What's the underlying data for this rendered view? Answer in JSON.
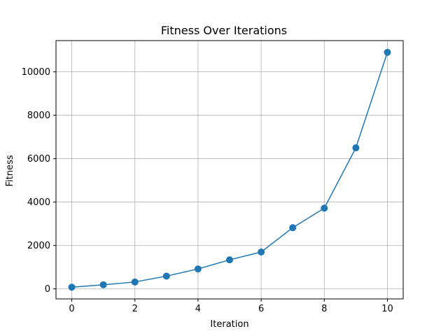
{
  "chart_data": {
    "type": "line",
    "title": "Fitness Over Iterations",
    "xlabel": "Iteration",
    "ylabel": "Fitness",
    "x": [
      0,
      1,
      2,
      3,
      4,
      5,
      6,
      7,
      8,
      9,
      10
    ],
    "series": [
      {
        "values": [
          80,
          190,
          320,
          590,
          920,
          1340,
          1700,
          2820,
          3720,
          6500,
          10900
        ],
        "color": "#1f77b4",
        "marker": "circle"
      }
    ],
    "xlim": [
      -0.5,
      10.5
    ],
    "ylim": [
      -460,
      11440
    ],
    "xticks": [
      0,
      2,
      4,
      6,
      8,
      10
    ],
    "xtick_labels": [
      "0",
      "2",
      "4",
      "6",
      "8",
      "10"
    ],
    "yticks": [
      0,
      2000,
      4000,
      6000,
      8000,
      10000
    ],
    "ytick_labels": [
      "0",
      "2000",
      "4000",
      "6000",
      "8000",
      "10000"
    ],
    "grid": true,
    "legend": false
  }
}
